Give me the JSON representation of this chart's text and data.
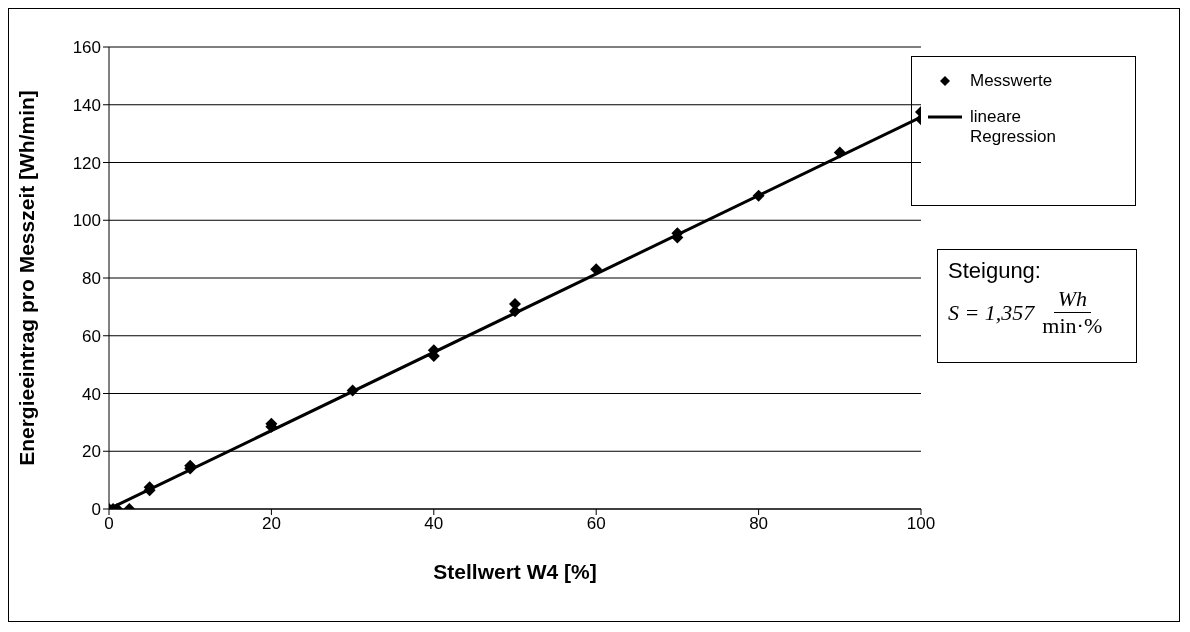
{
  "chart_data": {
    "type": "scatter",
    "xlabel": "Stellwert W4 [%]",
    "ylabel": "Energieeintrag pro Messzeit [Wh/min]",
    "xlim": [
      0,
      100
    ],
    "xticks": [
      0,
      20,
      40,
      60,
      80,
      100
    ],
    "ylim": [
      0,
      160
    ],
    "yticks": [
      0,
      20,
      40,
      60,
      80,
      100,
      120,
      140,
      160
    ],
    "grid": "y",
    "legend": "right",
    "series": [
      {
        "name": "Messwerte",
        "marker": "diamond",
        "color": "#000000",
        "x": [
          0,
          0.5,
          1,
          2.5,
          5,
          5,
          10,
          10,
          20,
          20,
          30,
          40,
          40,
          50,
          50,
          60,
          70,
          70,
          80,
          90,
          100,
          100
        ],
        "values": [
          0,
          0,
          0,
          0,
          6.5,
          7.5,
          14,
          15,
          28.5,
          29.5,
          41,
          53,
          55,
          68.5,
          71,
          83,
          94,
          95.5,
          108.5,
          123.5,
          135,
          137.5
        ]
      },
      {
        "name": "lineare Regression",
        "type": "line",
        "marker": "none",
        "color": "#000000",
        "x": [
          0,
          100
        ],
        "values": [
          0,
          135.7
        ]
      }
    ],
    "annotations": [
      "Steigung:",
      "S = 1,357",
      "Wh",
      "min·%"
    ]
  }
}
